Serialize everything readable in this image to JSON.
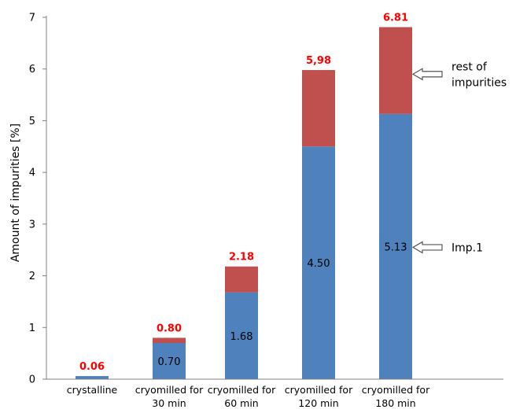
{
  "colors": {
    "imp1": "#4f81bd",
    "rest": "#c0504d",
    "total_label": "#ff0000",
    "axis": "#808080"
  },
  "chart_data": {
    "type": "bar",
    "stacked": true,
    "title": "",
    "xlabel": "",
    "ylabel": "Amount of impurities [%]",
    "ylim": [
      0,
      7
    ],
    "yticks": [
      "0",
      "1",
      "2",
      "3",
      "4",
      "5",
      "6",
      "7"
    ],
    "grid": false,
    "categories": [
      [
        "crystalline"
      ],
      [
        "cryomilled for",
        "30 min"
      ],
      [
        "cryomilled for",
        "60 min"
      ],
      [
        "cryomilled for",
        "120 min"
      ],
      [
        "cryomilled for",
        "180 min"
      ]
    ],
    "series": [
      {
        "values": [
          0.06,
          0.7,
          1.68,
          4.5,
          5.13
        ],
        "labels": [
          "",
          "0.70",
          "1.68",
          "4.50",
          "5.13"
        ]
      },
      {
        "values": [
          0.0,
          0.1,
          0.5,
          1.48,
          1.68
        ]
      }
    ],
    "totals": [
      0.06,
      0.8,
      2.18,
      5.98,
      6.81
    ],
    "total_labels": [
      "0.06",
      "0.80",
      "2.18",
      "5,98",
      "6.81"
    ],
    "annotations": [
      {
        "lines": [
          "rest of",
          "impurities"
        ],
        "points_to": 5.9
      },
      {
        "lines": [
          "Imp.1"
        ],
        "points_to": 2.55
      }
    ]
  }
}
